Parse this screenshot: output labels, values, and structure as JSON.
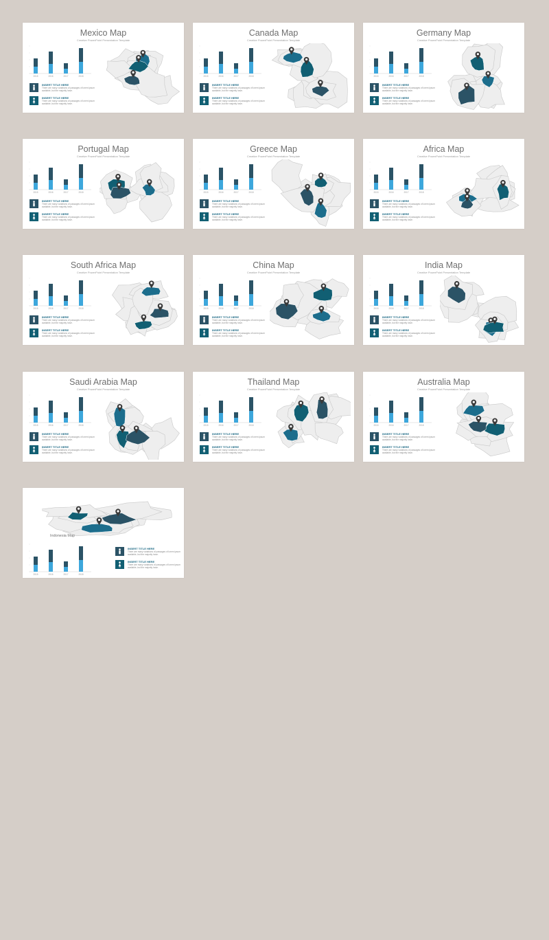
{
  "colors": {
    "background": "#d5cec8",
    "dark_bar": "#2b5366",
    "light_bar": "#3da7dc",
    "teal": "#115f73",
    "land": "#eeeeee"
  },
  "slides": [
    {
      "title": "Mexico Map",
      "subtitle": "Creative PowerPoint Presentation Template"
    },
    {
      "title": "Canada Map",
      "subtitle": "Creative PowerPoint Presentation Template"
    },
    {
      "title": "Germany Map",
      "subtitle": "Creative PowerPoint Presentation Template"
    },
    {
      "title": "Portugal Map",
      "subtitle": "Creative PowerPoint Presentation Template"
    },
    {
      "title": "Greece Map",
      "subtitle": "Creative PowerPoint Presentation Template"
    },
    {
      "title": "Africa Map",
      "subtitle": "Creative PowerPoint Presentation Template"
    },
    {
      "title": "South Africa Map",
      "subtitle": "Creative PowerPoint Presentation Template"
    },
    {
      "title": "China Map",
      "subtitle": "Creative PowerPoint Presentation Template"
    },
    {
      "title": "India Map",
      "subtitle": "Creative PowerPoint Presentation Template"
    },
    {
      "title": "Saudi Arabia Map",
      "subtitle": "Creative PowerPoint Presentation Template"
    },
    {
      "title": "Thailand Map",
      "subtitle": "Creative PowerPoint Presentation Template"
    },
    {
      "title": "Australia Map",
      "subtitle": "Creative PowerPoint Presentation Template"
    },
    {
      "title": "Indonesia Map",
      "subtitle": ""
    }
  ],
  "items": [
    {
      "icon": "male-icon",
      "title": "INSERT TITLE HERE",
      "desc": "There are many variations of passages of lorem ipsum available, but the majority have."
    },
    {
      "icon": "female-icon",
      "title": "INSERT TITLE HERE",
      "desc": "There are many variations of passages of lorem ipsum available, but the majority have."
    }
  ],
  "chart_data": {
    "type": "bar",
    "categories": [
      "2015",
      "2016",
      "2017",
      "2018"
    ],
    "series": [
      {
        "values": [
          22,
          32,
          15,
          37
        ]
      },
      {
        "values": [
          10,
          14,
          7,
          17
        ]
      }
    ],
    "ylim": [
      0,
      40
    ]
  }
}
